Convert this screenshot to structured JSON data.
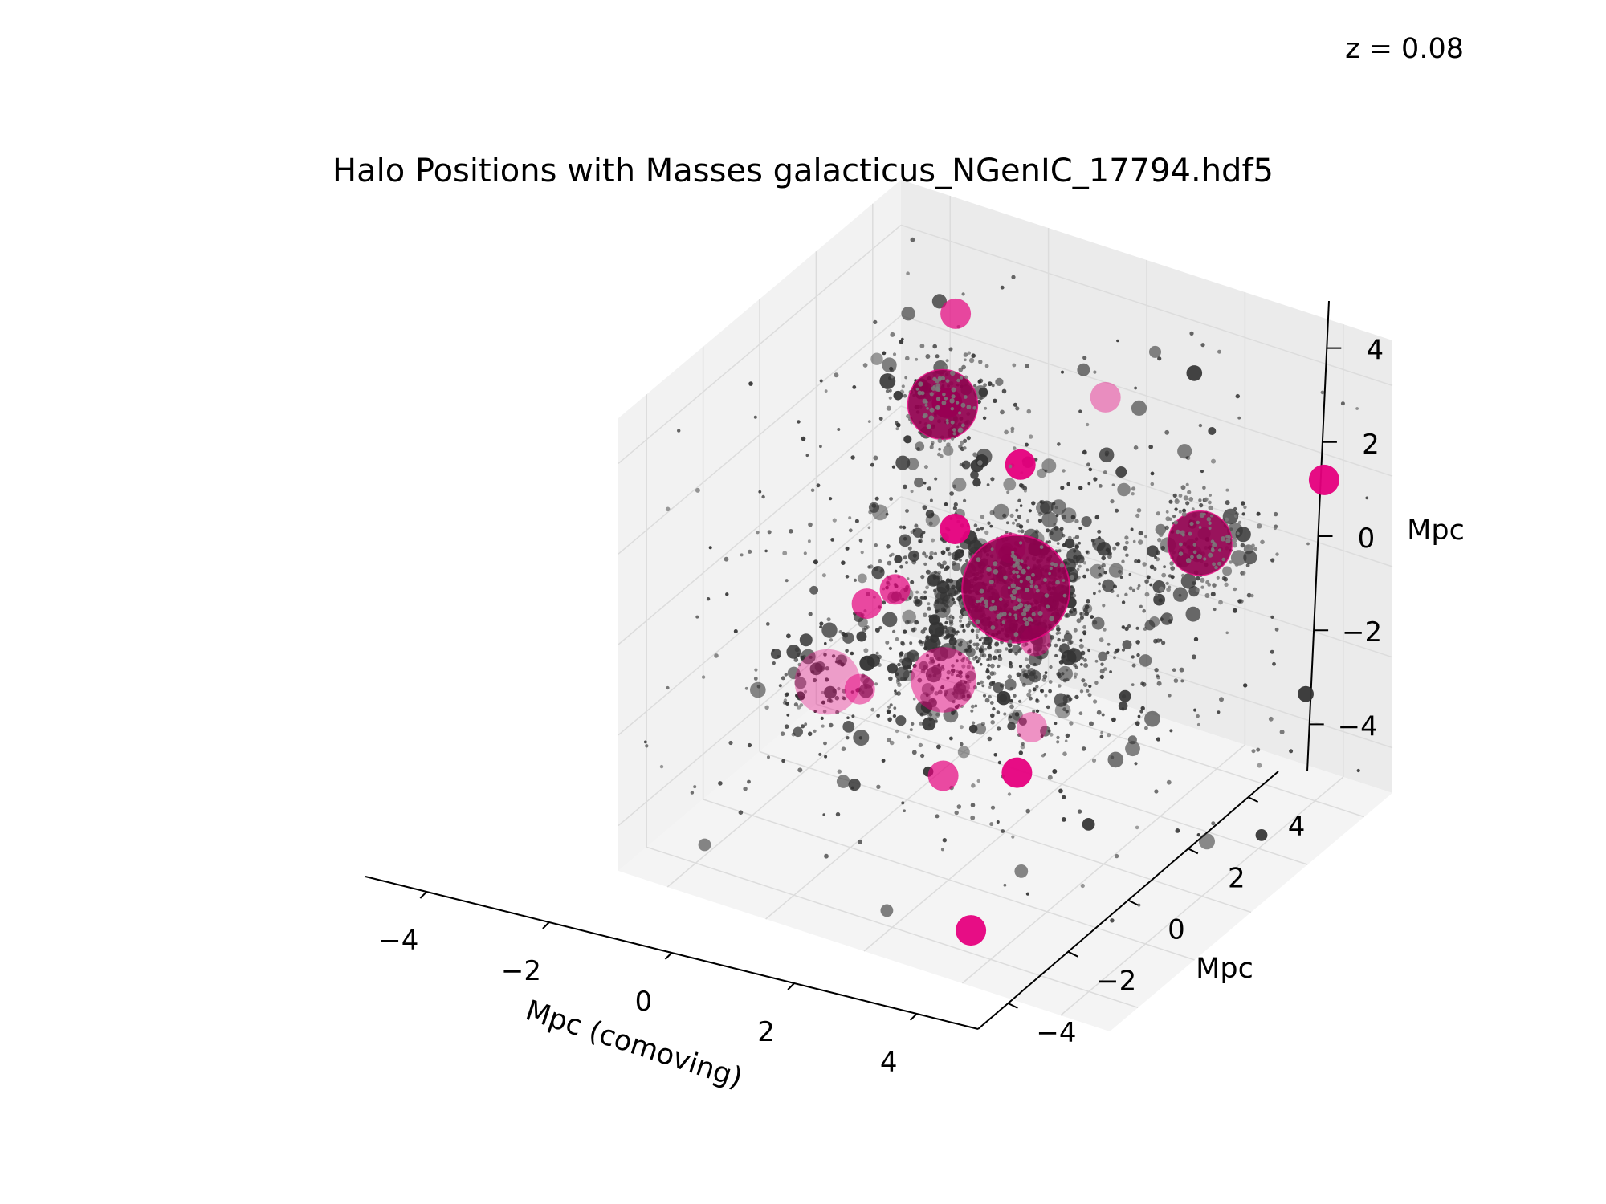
{
  "chart_data": {
    "type": "scatter",
    "projection": "3d",
    "title": "Halo Positions with Masses galacticus_NGenIC_17794.hdf5",
    "annotation": "z = 0.08",
    "xlabel": "Mpc (comoving)",
    "ylabel": "Mpc",
    "zlabel": "Mpc",
    "xlim": [
      -5,
      5
    ],
    "ylim": [
      -5,
      5
    ],
    "zlim": [
      -5,
      5
    ],
    "x_ticks": [
      "−4",
      "−2",
      "0",
      "2",
      "4"
    ],
    "y_ticks": [
      "−4",
      "−2",
      "0",
      "2",
      "4"
    ],
    "z_ticks": [
      "−4",
      "−2",
      "0",
      "2",
      "4"
    ],
    "grid": true,
    "colors": {
      "host_halo": "#e6007e",
      "subhalo": "#333333",
      "pane_left": "#f2f2f2",
      "pane_back": "#ebebeb",
      "pane_floor": "#f4f4f4",
      "gridline": "#dcdcdc"
    },
    "host_halos": [
      {
        "x": 0.1,
        "y": 0.2,
        "z": 0.3,
        "size": 1.0,
        "alpha": 0.85
      },
      {
        "x": -3.0,
        "y": 3.0,
        "z": 1.8,
        "size": 0.65,
        "alpha": 0.85
      },
      {
        "x": 3.5,
        "y": 0.8,
        "z": 2.2,
        "size": 0.6,
        "alpha": 0.85
      },
      {
        "x": -2.7,
        "y": -1.6,
        "z": -1.8,
        "size": 0.6,
        "alpha": 0.35
      },
      {
        "x": -0.8,
        "y": -0.8,
        "z": -1.5,
        "size": 0.6,
        "alpha": 0.5
      },
      {
        "x": -3.6,
        "y": 4.5,
        "z": 2.8,
        "size": 0.28,
        "alpha": 0.7
      },
      {
        "x": -3.2,
        "y": 3.5,
        "z": 1.5,
        "size": 0.28,
        "alpha": 0.95
      },
      {
        "x": -1.6,
        "y": 1.0,
        "z": 0.6,
        "size": 0.28,
        "alpha": 0.95
      },
      {
        "x": -1.9,
        "y": -0.6,
        "z": 0.0,
        "size": 0.28,
        "alpha": 0.7
      },
      {
        "x": -2.3,
        "y": -0.9,
        "z": -0.3,
        "size": 0.28,
        "alpha": 0.7
      },
      {
        "x": -0.5,
        "y": 1.4,
        "z": 2.2,
        "size": 0.28,
        "alpha": 0.95
      },
      {
        "x": -0.3,
        "y": 0.7,
        "z": 0.8,
        "size": 0.28,
        "alpha": 0.6
      },
      {
        "x": 0.6,
        "y": 2.5,
        "z": 3.5,
        "size": 0.28,
        "alpha": 0.4
      },
      {
        "x": 4.3,
        "y": 3.8,
        "z": 2.3,
        "size": 0.28,
        "alpha": 0.95
      },
      {
        "x": 1.5,
        "y": -2.2,
        "z": -2.0,
        "size": 0.28,
        "alpha": 0.95
      },
      {
        "x": 1.6,
        "y": -4.0,
        "z": -4.5,
        "size": 0.28,
        "alpha": 0.95
      },
      {
        "x": 0.0,
        "y": -2.2,
        "z": -2.6,
        "size": 0.28,
        "alpha": 0.7
      },
      {
        "x": 0.9,
        "y": -0.5,
        "z": -0.2,
        "size": 0.28,
        "alpha": 0.5
      },
      {
        "x": 1.4,
        "y": -1.5,
        "z": -1.4,
        "size": 0.28,
        "alpha": 0.4
      },
      {
        "x": -2.1,
        "y": -1.5,
        "z": -1.8,
        "size": 0.28,
        "alpha": 0.5
      }
    ],
    "subhalos": {
      "count": 1900,
      "note": "dense cluster of dark grey points of varying size surrounding the host halos"
    }
  }
}
